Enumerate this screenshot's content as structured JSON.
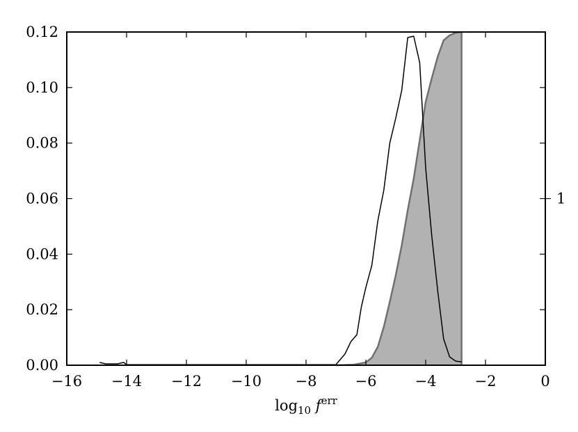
{
  "chart_data": {
    "type": "line",
    "xlabel": {
      "base": "log",
      "sub": "10",
      "var": " f",
      "sup": "err"
    },
    "xlim": [
      -16,
      0
    ],
    "ylim": [
      0,
      0.12
    ],
    "x_ticks": [
      -16,
      -14,
      -12,
      -10,
      -8,
      -6,
      -4,
      -2,
      0
    ],
    "x_tick_labels": [
      "−16",
      "−14",
      "−12",
      "−10",
      "−8",
      "−6",
      "−4",
      "−2",
      "0"
    ],
    "y_ticks": [
      0,
      0.02,
      0.04,
      0.06,
      0.08,
      0.1,
      0.12
    ],
    "y_tick_labels": [
      "0.00",
      "0.02",
      "0.04",
      "0.06",
      "0.08",
      "0.10",
      "0.12"
    ],
    "right_axis": {
      "tick_value": 1,
      "tick_label": "1",
      "ylim": [
        0,
        2
      ]
    },
    "grid": false,
    "series": [
      {
        "kind": "line",
        "axis": "left",
        "color": "#000000",
        "x": [
          -14.9,
          -14.7,
          -14.5,
          -14.3,
          -14.1,
          -14.0,
          -13.5,
          -12,
          -10,
          -8,
          -7.0,
          -6.9,
          -6.7,
          -6.5,
          -6.3,
          -6.15,
          -6.0,
          -5.8,
          -5.6,
          -5.4,
          -5.2,
          -5.0,
          -4.8,
          -4.6,
          -4.4,
          -4.2,
          -4.0,
          -3.8,
          -3.6,
          -3.4,
          -3.2,
          -3.0,
          -2.8
        ],
        "y": [
          0.001,
          0.0005,
          0.0005,
          0.0005,
          0.001,
          0.0002,
          0.0002,
          0.0002,
          0.0002,
          0.0002,
          0.0002,
          0.0015,
          0.004,
          0.0085,
          0.011,
          0.021,
          0.028,
          0.036,
          0.052,
          0.063,
          0.08,
          0.089,
          0.099,
          0.118,
          0.1185,
          0.109,
          0.071,
          0.047,
          0.027,
          0.0095,
          0.003,
          0.0015,
          0.0012
        ]
      },
      {
        "kind": "area",
        "axis": "right",
        "fill": "#b2b2b2",
        "stroke": "#707070",
        "x": [
          -7,
          -6.4,
          -6.0,
          -5.8,
          -5.6,
          -5.4,
          -5.2,
          -5.0,
          -4.8,
          -4.6,
          -4.4,
          -4.2,
          -4.0,
          -3.8,
          -3.6,
          -3.4,
          -3.2,
          -3.0,
          -2.8
        ],
        "y": [
          0,
          0.003,
          0.017,
          0.045,
          0.11,
          0.23,
          0.38,
          0.54,
          0.72,
          0.93,
          1.12,
          1.35,
          1.58,
          1.72,
          1.85,
          1.95,
          1.98,
          1.995,
          2.0
        ]
      }
    ]
  }
}
